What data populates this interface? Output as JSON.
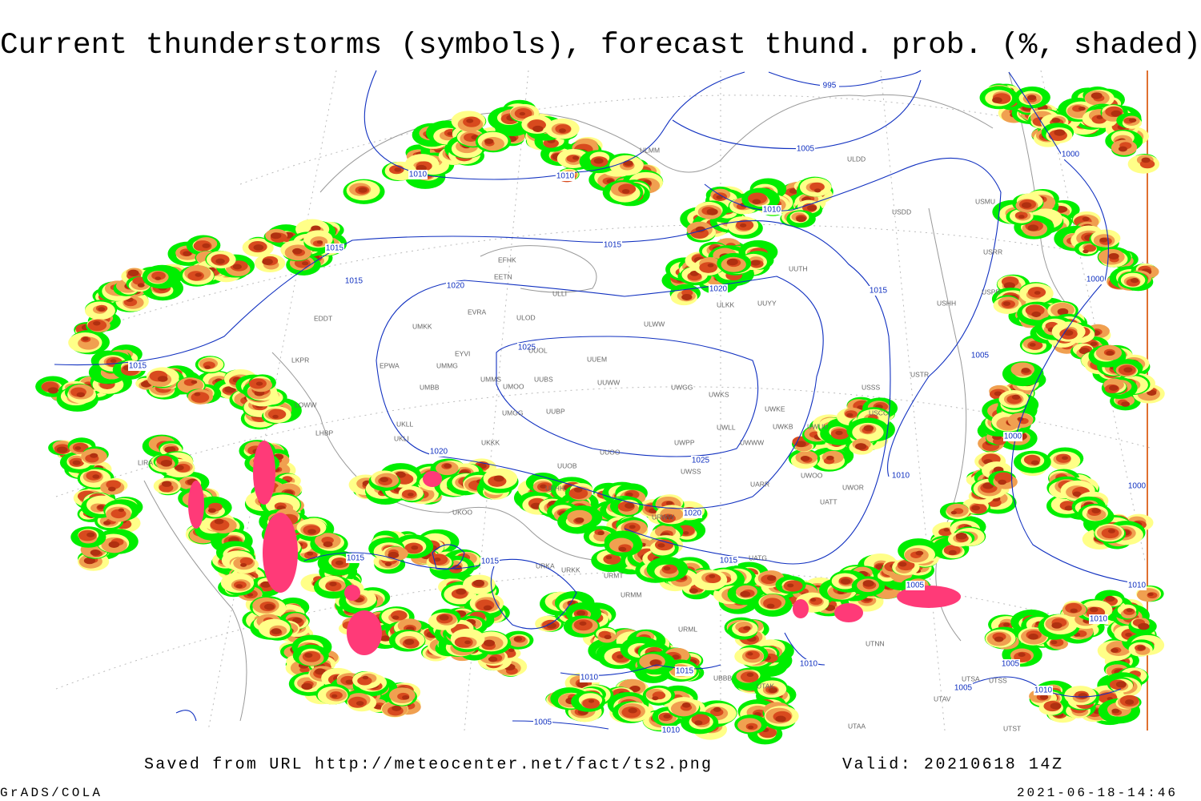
{
  "header": {
    "title": "Current thunderstorms (symbols), forecast thund. prob. (%, shaded)"
  },
  "footer": {
    "saved_from": "Saved from URL http://meteocenter.net/fact/ts2.png",
    "valid": "Valid: 20210618 14Z",
    "software": "GrADS/COLA",
    "timestamp": "2021-06-18-14:46"
  },
  "isobar_labels": [
    "1010",
    "1010",
    "995",
    "1005",
    "1010",
    "1015",
    "1015",
    "1015",
    "1020",
    "1020",
    "1015",
    "1000",
    "1000",
    "1015",
    "1025",
    "1005",
    "1000",
    "1020",
    "1025",
    "1010",
    "1020",
    "1015",
    "1015",
    "1015",
    "1005",
    "1010",
    "1015",
    "1010",
    "1005",
    "1010",
    "1005",
    "1010",
    "1005",
    "1010",
    "1000",
    "1010"
  ],
  "station_labels": [
    "EFHK",
    "EETN",
    "ULLI",
    "ULMM",
    "ULDD",
    "USDD",
    "USMU",
    "USRR",
    "USPR",
    "USHH",
    "USTR",
    "USSS",
    "USCC",
    "UUYY",
    "ULKK",
    "UUTH",
    "EVRA",
    "ULOD",
    "ULWW",
    "UMKK",
    "EYVI",
    "UMMG",
    "EPWA",
    "LKPR",
    "EDDT",
    "UUEM",
    "UUOL",
    "UMMS",
    "UMOO",
    "UUBS",
    "UUWW",
    "UWGG",
    "UWKS",
    "UWKE",
    "UWKB",
    "UWUU",
    "UWLL",
    "UWWW",
    "UMBB",
    "UMGG",
    "UUBP",
    "LOWW",
    "LHBP",
    "UKLL",
    "UKLI",
    "UKKK",
    "UUOO",
    "UWPP",
    "UWSS",
    "UUOB",
    "UWOO",
    "UWOR",
    "UARR",
    "UATT",
    "URWW",
    "UKHH",
    "UKOO",
    "LIRA",
    "URKK",
    "URKA",
    "URMT",
    "URMM",
    "URML",
    "UBBB",
    "UTAK",
    "UATG",
    "UTNN",
    "UTSA",
    "UTSS",
    "UTAV",
    "UTST",
    "UTAA"
  ]
}
